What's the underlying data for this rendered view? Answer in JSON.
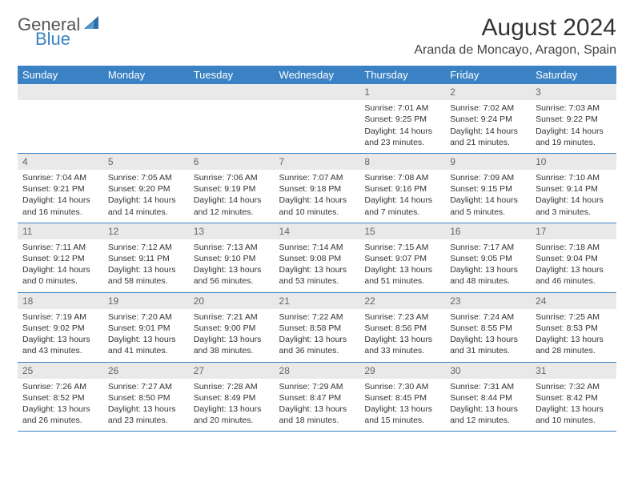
{
  "logo": {
    "line1": "General",
    "line2": "Blue",
    "icon_color": "#2f6fa8"
  },
  "title": "August 2024",
  "location": "Aranda de Moncayo, Aragon, Spain",
  "colors": {
    "header_bg": "#3b82c4",
    "daynum_bg": "#e9e9e9",
    "rule": "#3b82c4"
  },
  "day_headers": [
    "Sunday",
    "Monday",
    "Tuesday",
    "Wednesday",
    "Thursday",
    "Friday",
    "Saturday"
  ],
  "weeks": [
    [
      null,
      null,
      null,
      null,
      {
        "n": "1",
        "sr": "7:01 AM",
        "ss": "9:25 PM",
        "dl": "14 hours and 23 minutes."
      },
      {
        "n": "2",
        "sr": "7:02 AM",
        "ss": "9:24 PM",
        "dl": "14 hours and 21 minutes."
      },
      {
        "n": "3",
        "sr": "7:03 AM",
        "ss": "9:22 PM",
        "dl": "14 hours and 19 minutes."
      }
    ],
    [
      {
        "n": "4",
        "sr": "7:04 AM",
        "ss": "9:21 PM",
        "dl": "14 hours and 16 minutes."
      },
      {
        "n": "5",
        "sr": "7:05 AM",
        "ss": "9:20 PM",
        "dl": "14 hours and 14 minutes."
      },
      {
        "n": "6",
        "sr": "7:06 AM",
        "ss": "9:19 PM",
        "dl": "14 hours and 12 minutes."
      },
      {
        "n": "7",
        "sr": "7:07 AM",
        "ss": "9:18 PM",
        "dl": "14 hours and 10 minutes."
      },
      {
        "n": "8",
        "sr": "7:08 AM",
        "ss": "9:16 PM",
        "dl": "14 hours and 7 minutes."
      },
      {
        "n": "9",
        "sr": "7:09 AM",
        "ss": "9:15 PM",
        "dl": "14 hours and 5 minutes."
      },
      {
        "n": "10",
        "sr": "7:10 AM",
        "ss": "9:14 PM",
        "dl": "14 hours and 3 minutes."
      }
    ],
    [
      {
        "n": "11",
        "sr": "7:11 AM",
        "ss": "9:12 PM",
        "dl": "14 hours and 0 minutes."
      },
      {
        "n": "12",
        "sr": "7:12 AM",
        "ss": "9:11 PM",
        "dl": "13 hours and 58 minutes."
      },
      {
        "n": "13",
        "sr": "7:13 AM",
        "ss": "9:10 PM",
        "dl": "13 hours and 56 minutes."
      },
      {
        "n": "14",
        "sr": "7:14 AM",
        "ss": "9:08 PM",
        "dl": "13 hours and 53 minutes."
      },
      {
        "n": "15",
        "sr": "7:15 AM",
        "ss": "9:07 PM",
        "dl": "13 hours and 51 minutes."
      },
      {
        "n": "16",
        "sr": "7:17 AM",
        "ss": "9:05 PM",
        "dl": "13 hours and 48 minutes."
      },
      {
        "n": "17",
        "sr": "7:18 AM",
        "ss": "9:04 PM",
        "dl": "13 hours and 46 minutes."
      }
    ],
    [
      {
        "n": "18",
        "sr": "7:19 AM",
        "ss": "9:02 PM",
        "dl": "13 hours and 43 minutes."
      },
      {
        "n": "19",
        "sr": "7:20 AM",
        "ss": "9:01 PM",
        "dl": "13 hours and 41 minutes."
      },
      {
        "n": "20",
        "sr": "7:21 AM",
        "ss": "9:00 PM",
        "dl": "13 hours and 38 minutes."
      },
      {
        "n": "21",
        "sr": "7:22 AM",
        "ss": "8:58 PM",
        "dl": "13 hours and 36 minutes."
      },
      {
        "n": "22",
        "sr": "7:23 AM",
        "ss": "8:56 PM",
        "dl": "13 hours and 33 minutes."
      },
      {
        "n": "23",
        "sr": "7:24 AM",
        "ss": "8:55 PM",
        "dl": "13 hours and 31 minutes."
      },
      {
        "n": "24",
        "sr": "7:25 AM",
        "ss": "8:53 PM",
        "dl": "13 hours and 28 minutes."
      }
    ],
    [
      {
        "n": "25",
        "sr": "7:26 AM",
        "ss": "8:52 PM",
        "dl": "13 hours and 26 minutes."
      },
      {
        "n": "26",
        "sr": "7:27 AM",
        "ss": "8:50 PM",
        "dl": "13 hours and 23 minutes."
      },
      {
        "n": "27",
        "sr": "7:28 AM",
        "ss": "8:49 PM",
        "dl": "13 hours and 20 minutes."
      },
      {
        "n": "28",
        "sr": "7:29 AM",
        "ss": "8:47 PM",
        "dl": "13 hours and 18 minutes."
      },
      {
        "n": "29",
        "sr": "7:30 AM",
        "ss": "8:45 PM",
        "dl": "13 hours and 15 minutes."
      },
      {
        "n": "30",
        "sr": "7:31 AM",
        "ss": "8:44 PM",
        "dl": "13 hours and 12 minutes."
      },
      {
        "n": "31",
        "sr": "7:32 AM",
        "ss": "8:42 PM",
        "dl": "13 hours and 10 minutes."
      }
    ]
  ],
  "labels": {
    "sunrise": "Sunrise: ",
    "sunset": "Sunset: ",
    "daylight": "Daylight: "
  }
}
